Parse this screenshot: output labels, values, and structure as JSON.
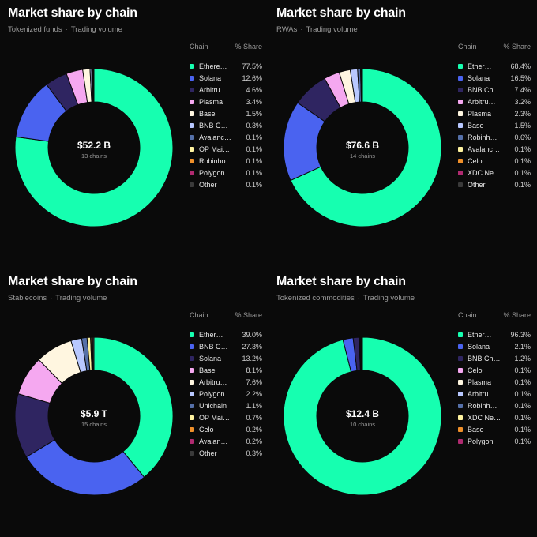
{
  "legend_header": {
    "chain": "Chain",
    "share": "% Share"
  },
  "chart_data": [
    {
      "type": "pie",
      "title": "Market share by chain",
      "subtitle_left": "Tokenized funds",
      "subtitle_right": "Trading volume",
      "center_amount": "$52.2 B",
      "center_count": "13 chains",
      "slices": [
        {
          "name": "Ethere…",
          "value": 77.5,
          "label": "77.5%",
          "color": "#16ffb0"
        },
        {
          "name": "Solana",
          "value": 12.6,
          "label": "12.6%",
          "color": "#4a63f0"
        },
        {
          "name": "Arbitru…",
          "value": 4.6,
          "label": "4.6%",
          "color": "#2f2561"
        },
        {
          "name": "Plasma",
          "value": 3.4,
          "label": "3.4%",
          "color": "#f5a8f0"
        },
        {
          "name": "Base",
          "value": 1.5,
          "label": "1.5%",
          "color": "#fff6e0"
        },
        {
          "name": "BNB C…",
          "value": 0.3,
          "label": "0.3%",
          "color": "#b8c8ff"
        },
        {
          "name": "Avalanc…",
          "value": 0.1,
          "label": "0.1%",
          "color": "#5570a8"
        },
        {
          "name": "OP Mai…",
          "value": 0.1,
          "label": "0.1%",
          "color": "#fff3a0"
        },
        {
          "name": "Robinho…",
          "value": 0.1,
          "label": "0.1%",
          "color": "#f0902a"
        },
        {
          "name": "Polygon",
          "value": 0.1,
          "label": "0.1%",
          "color": "#b02a70"
        },
        {
          "name": "Other",
          "value": 0.1,
          "label": "0.1%",
          "color": "#3a3a3a"
        }
      ]
    },
    {
      "type": "pie",
      "title": "Market share by chain",
      "subtitle_left": "RWAs",
      "subtitle_right": "Trading volume",
      "center_amount": "$76.6 B",
      "center_count": "14 chains",
      "slices": [
        {
          "name": "Ether…",
          "value": 68.4,
          "label": "68.4%",
          "color": "#16ffb0"
        },
        {
          "name": "Solana",
          "value": 16.5,
          "label": "16.5%",
          "color": "#4a63f0"
        },
        {
          "name": "BNB Ch…",
          "value": 7.4,
          "label": "7.4%",
          "color": "#2f2561"
        },
        {
          "name": "Arbitru…",
          "value": 3.2,
          "label": "3.2%",
          "color": "#f5a8f0"
        },
        {
          "name": "Plasma",
          "value": 2.3,
          "label": "2.3%",
          "color": "#fff6e0"
        },
        {
          "name": "Base",
          "value": 1.5,
          "label": "1.5%",
          "color": "#b8c8ff"
        },
        {
          "name": "Robinh…",
          "value": 0.6,
          "label": "0.6%",
          "color": "#5570a8"
        },
        {
          "name": "Avalanc…",
          "value": 0.1,
          "label": "0.1%",
          "color": "#fff3a0"
        },
        {
          "name": "Celo",
          "value": 0.1,
          "label": "0.1%",
          "color": "#f0902a"
        },
        {
          "name": "XDC Ne…",
          "value": 0.1,
          "label": "0.1%",
          "color": "#b02a70"
        },
        {
          "name": "Other",
          "value": 0.1,
          "label": "0.1%",
          "color": "#3a3a3a"
        }
      ]
    },
    {
      "type": "pie",
      "title": "Market share by chain",
      "subtitle_left": "Stablecoins",
      "subtitle_right": "Trading volume",
      "center_amount": "$5.9 T",
      "center_count": "15 chains",
      "slices": [
        {
          "name": "Ether…",
          "value": 39.0,
          "label": "39.0%",
          "color": "#16ffb0"
        },
        {
          "name": "BNB C…",
          "value": 27.3,
          "label": "27.3%",
          "color": "#4a63f0"
        },
        {
          "name": "Solana",
          "value": 13.2,
          "label": "13.2%",
          "color": "#2f2561"
        },
        {
          "name": "Base",
          "value": 8.1,
          "label": "8.1%",
          "color": "#f5a8f0"
        },
        {
          "name": "Arbitru…",
          "value": 7.6,
          "label": "7.6%",
          "color": "#fff6e0"
        },
        {
          "name": "Polygon",
          "value": 2.2,
          "label": "2.2%",
          "color": "#b8c8ff"
        },
        {
          "name": "Unichain",
          "value": 1.1,
          "label": "1.1%",
          "color": "#5570a8"
        },
        {
          "name": "OP Mai…",
          "value": 0.7,
          "label": "0.7%",
          "color": "#fff3a0"
        },
        {
          "name": "Celo",
          "value": 0.2,
          "label": "0.2%",
          "color": "#f0902a"
        },
        {
          "name": "Avalan…",
          "value": 0.2,
          "label": "0.2%",
          "color": "#b02a70"
        },
        {
          "name": "Other",
          "value": 0.3,
          "label": "0.3%",
          "color": "#3a3a3a"
        }
      ]
    },
    {
      "type": "pie",
      "title": "Market share by chain",
      "subtitle_left": "Tokenized commodities",
      "subtitle_right": "Trading volume",
      "center_amount": "$12.4 B",
      "center_count": "10 chains",
      "slices": [
        {
          "name": "Ether…",
          "value": 96.3,
          "label": "96.3%",
          "color": "#16ffb0"
        },
        {
          "name": "Solana",
          "value": 2.1,
          "label": "2.1%",
          "color": "#4a63f0"
        },
        {
          "name": "BNB Ch…",
          "value": 1.2,
          "label": "1.2%",
          "color": "#2f2561"
        },
        {
          "name": "Celo",
          "value": 0.1,
          "label": "0.1%",
          "color": "#f5a8f0"
        },
        {
          "name": "Plasma",
          "value": 0.1,
          "label": "0.1%",
          "color": "#fff6e0"
        },
        {
          "name": "Arbitru…",
          "value": 0.1,
          "label": "0.1%",
          "color": "#b8c8ff"
        },
        {
          "name": "Robinh…",
          "value": 0.1,
          "label": "0.1%",
          "color": "#5570a8"
        },
        {
          "name": "XDC Ne…",
          "value": 0.1,
          "label": "0.1%",
          "color": "#fff3a0"
        },
        {
          "name": "Base",
          "value": 0.1,
          "label": "0.1%",
          "color": "#f0902a"
        },
        {
          "name": "Polygon",
          "value": 0.1,
          "label": "0.1%",
          "color": "#b02a70"
        }
      ]
    }
  ]
}
